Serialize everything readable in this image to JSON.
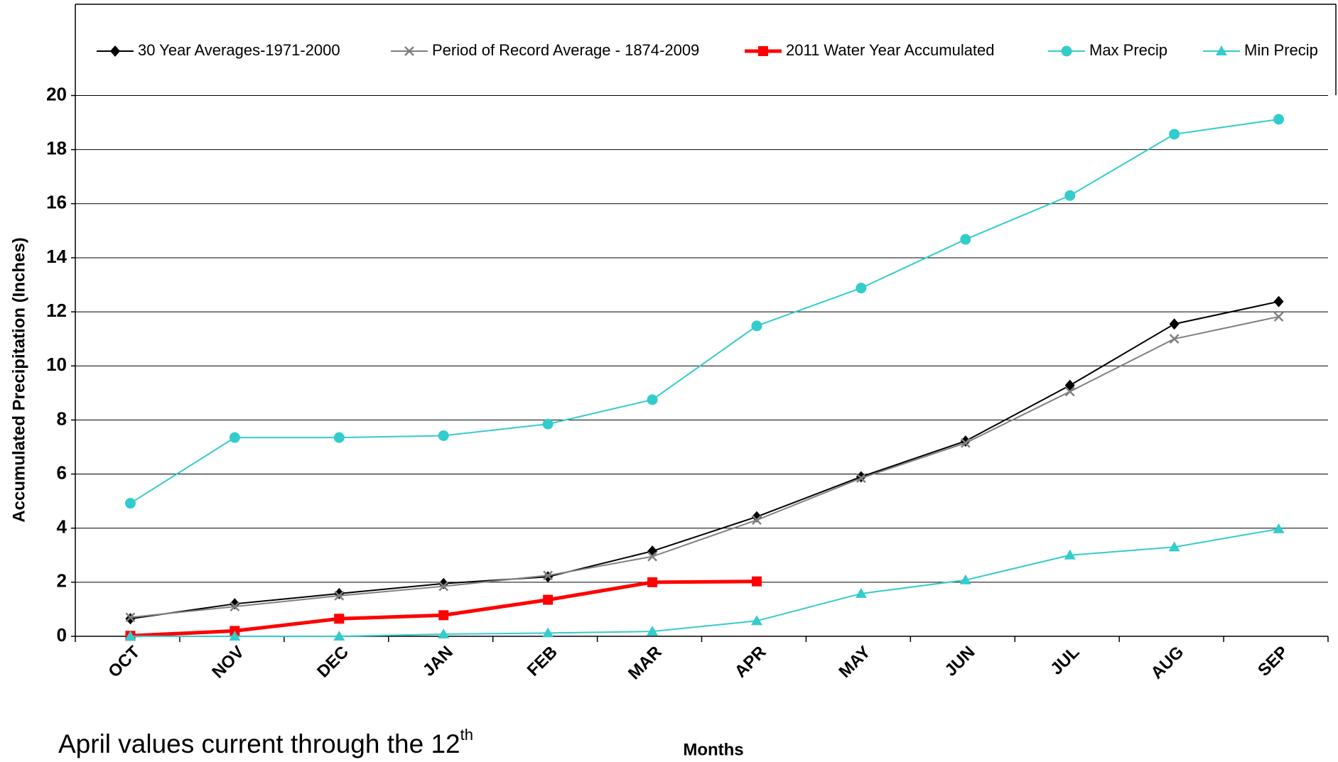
{
  "chart_data": {
    "type": "line",
    "y_label": "Accumulated Precipitation (Inches)",
    "x_label": "Months",
    "annotation": {
      "text": "April values current through the 12",
      "superscript": "th"
    },
    "categories": [
      "OCT",
      "NOV",
      "DEC",
      "JAN",
      "FEB",
      "MAR",
      "APR",
      "MAY",
      "JUN",
      "JUL",
      "AUG",
      "SEP"
    ],
    "ylim": [
      0,
      20
    ],
    "yticks": [
      0,
      2,
      4,
      6,
      8,
      10,
      12,
      14,
      16,
      18,
      20
    ],
    "grid": true,
    "legend": "top",
    "series": [
      {
        "name": "30 Year Averages-1971-2000",
        "color": "#000000",
        "marker": "diamond",
        "width": 2,
        "values": [
          0.65,
          1.2,
          1.58,
          1.95,
          2.2,
          3.15,
          4.42,
          5.9,
          7.22,
          9.28,
          11.55,
          12.38
        ]
      },
      {
        "name": "Period of Record Average - 1874-2009",
        "color": "#808080",
        "marker": "x",
        "width": 2,
        "values": [
          0.7,
          1.1,
          1.5,
          1.85,
          2.25,
          2.95,
          4.3,
          5.85,
          7.15,
          9.05,
          11.0,
          11.82
        ]
      },
      {
        "name": "2011 Water Year Accumulated",
        "color": "#ff0000",
        "marker": "square",
        "width": 5,
        "values": [
          0.02,
          0.2,
          0.65,
          0.78,
          1.35,
          2.0,
          2.03,
          null,
          null,
          null,
          null,
          null
        ]
      },
      {
        "name": "Max Precip",
        "color": "#33cccc",
        "marker": "circle",
        "width": 2,
        "values": [
          4.92,
          7.35,
          7.35,
          7.42,
          7.85,
          8.75,
          11.48,
          12.88,
          14.68,
          16.3,
          18.57,
          19.12
        ]
      },
      {
        "name": "Min Precip",
        "color": "#33cccc",
        "marker": "triangle",
        "width": 2,
        "values": [
          0,
          0,
          0,
          0.08,
          0.12,
          0.18,
          0.57,
          1.58,
          2.08,
          3.0,
          3.3,
          3.97
        ]
      }
    ]
  }
}
